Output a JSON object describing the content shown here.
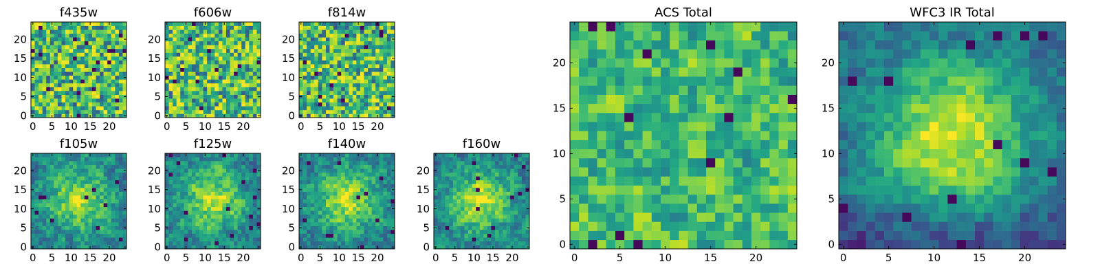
{
  "figure": {
    "colormap": "viridis",
    "background": "#ffffff"
  },
  "chart_data": [
    {
      "type": "heatmap",
      "title": "f435w",
      "shape": [
        25,
        25
      ],
      "xlim": [
        0,
        25
      ],
      "ylim": [
        0,
        25
      ],
      "xticks": [
        0,
        5,
        10,
        15,
        20
      ],
      "yticks": [
        0,
        5,
        10,
        15,
        20
      ],
      "texture": "noise",
      "seed": 11
    },
    {
      "type": "heatmap",
      "title": "f606w",
      "shape": [
        25,
        25
      ],
      "xlim": [
        0,
        25
      ],
      "ylim": [
        0,
        25
      ],
      "xticks": [
        0,
        5,
        10,
        15,
        20
      ],
      "yticks": [
        0,
        5,
        10,
        15,
        20
      ],
      "texture": "noise",
      "seed": 23
    },
    {
      "type": "heatmap",
      "title": "f814w",
      "shape": [
        25,
        25
      ],
      "xlim": [
        0,
        25
      ],
      "ylim": [
        0,
        25
      ],
      "xticks": [
        0,
        5,
        10,
        15,
        20
      ],
      "yticks": [
        0,
        5,
        10,
        15,
        20
      ],
      "texture": "noise",
      "seed": 37
    },
    {
      "type": "heatmap",
      "title": "f105w",
      "shape": [
        25,
        25
      ],
      "xlim": [
        0,
        25
      ],
      "ylim": [
        0,
        25
      ],
      "xticks": [
        0,
        5,
        10,
        15,
        20
      ],
      "yticks": [
        0,
        5,
        10,
        15,
        20
      ],
      "texture": "central_peak",
      "seed": 41
    },
    {
      "type": "heatmap",
      "title": "f125w",
      "shape": [
        25,
        25
      ],
      "xlim": [
        0,
        25
      ],
      "ylim": [
        0,
        25
      ],
      "xticks": [
        0,
        5,
        10,
        15,
        20
      ],
      "yticks": [
        0,
        5,
        10,
        15,
        20
      ],
      "texture": "central_peak",
      "seed": 53
    },
    {
      "type": "heatmap",
      "title": "f140w",
      "shape": [
        25,
        25
      ],
      "xlim": [
        0,
        25
      ],
      "ylim": [
        0,
        25
      ],
      "xticks": [
        0,
        5,
        10,
        15,
        20
      ],
      "yticks": [
        0,
        5,
        10,
        15,
        20
      ],
      "texture": "central_peak",
      "seed": 67
    },
    {
      "type": "heatmap",
      "title": "f160w",
      "shape": [
        25,
        25
      ],
      "xlim": [
        0,
        25
      ],
      "ylim": [
        0,
        25
      ],
      "xticks": [
        0,
        5,
        10,
        15,
        20
      ],
      "yticks": [
        0,
        5,
        10,
        15,
        20
      ],
      "texture": "central_peak",
      "seed": 79
    },
    {
      "type": "heatmap",
      "title": "ACS Total",
      "shape": [
        25,
        25
      ],
      "xlim": [
        0,
        25
      ],
      "ylim": [
        0,
        25
      ],
      "xticks": [
        0,
        5,
        10,
        15,
        20
      ],
      "yticks": [
        0,
        5,
        10,
        15,
        20
      ],
      "texture": "noise_smooth",
      "seed": 83
    },
    {
      "type": "heatmap",
      "title": "WFC3 IR Total",
      "shape": [
        25,
        25
      ],
      "xlim": [
        0,
        25
      ],
      "ylim": [
        0,
        25
      ],
      "xticks": [
        0,
        5,
        10,
        15,
        20
      ],
      "yticks": [
        0,
        5,
        10,
        15,
        20
      ],
      "texture": "central_peak_strong",
      "seed": 97
    }
  ]
}
